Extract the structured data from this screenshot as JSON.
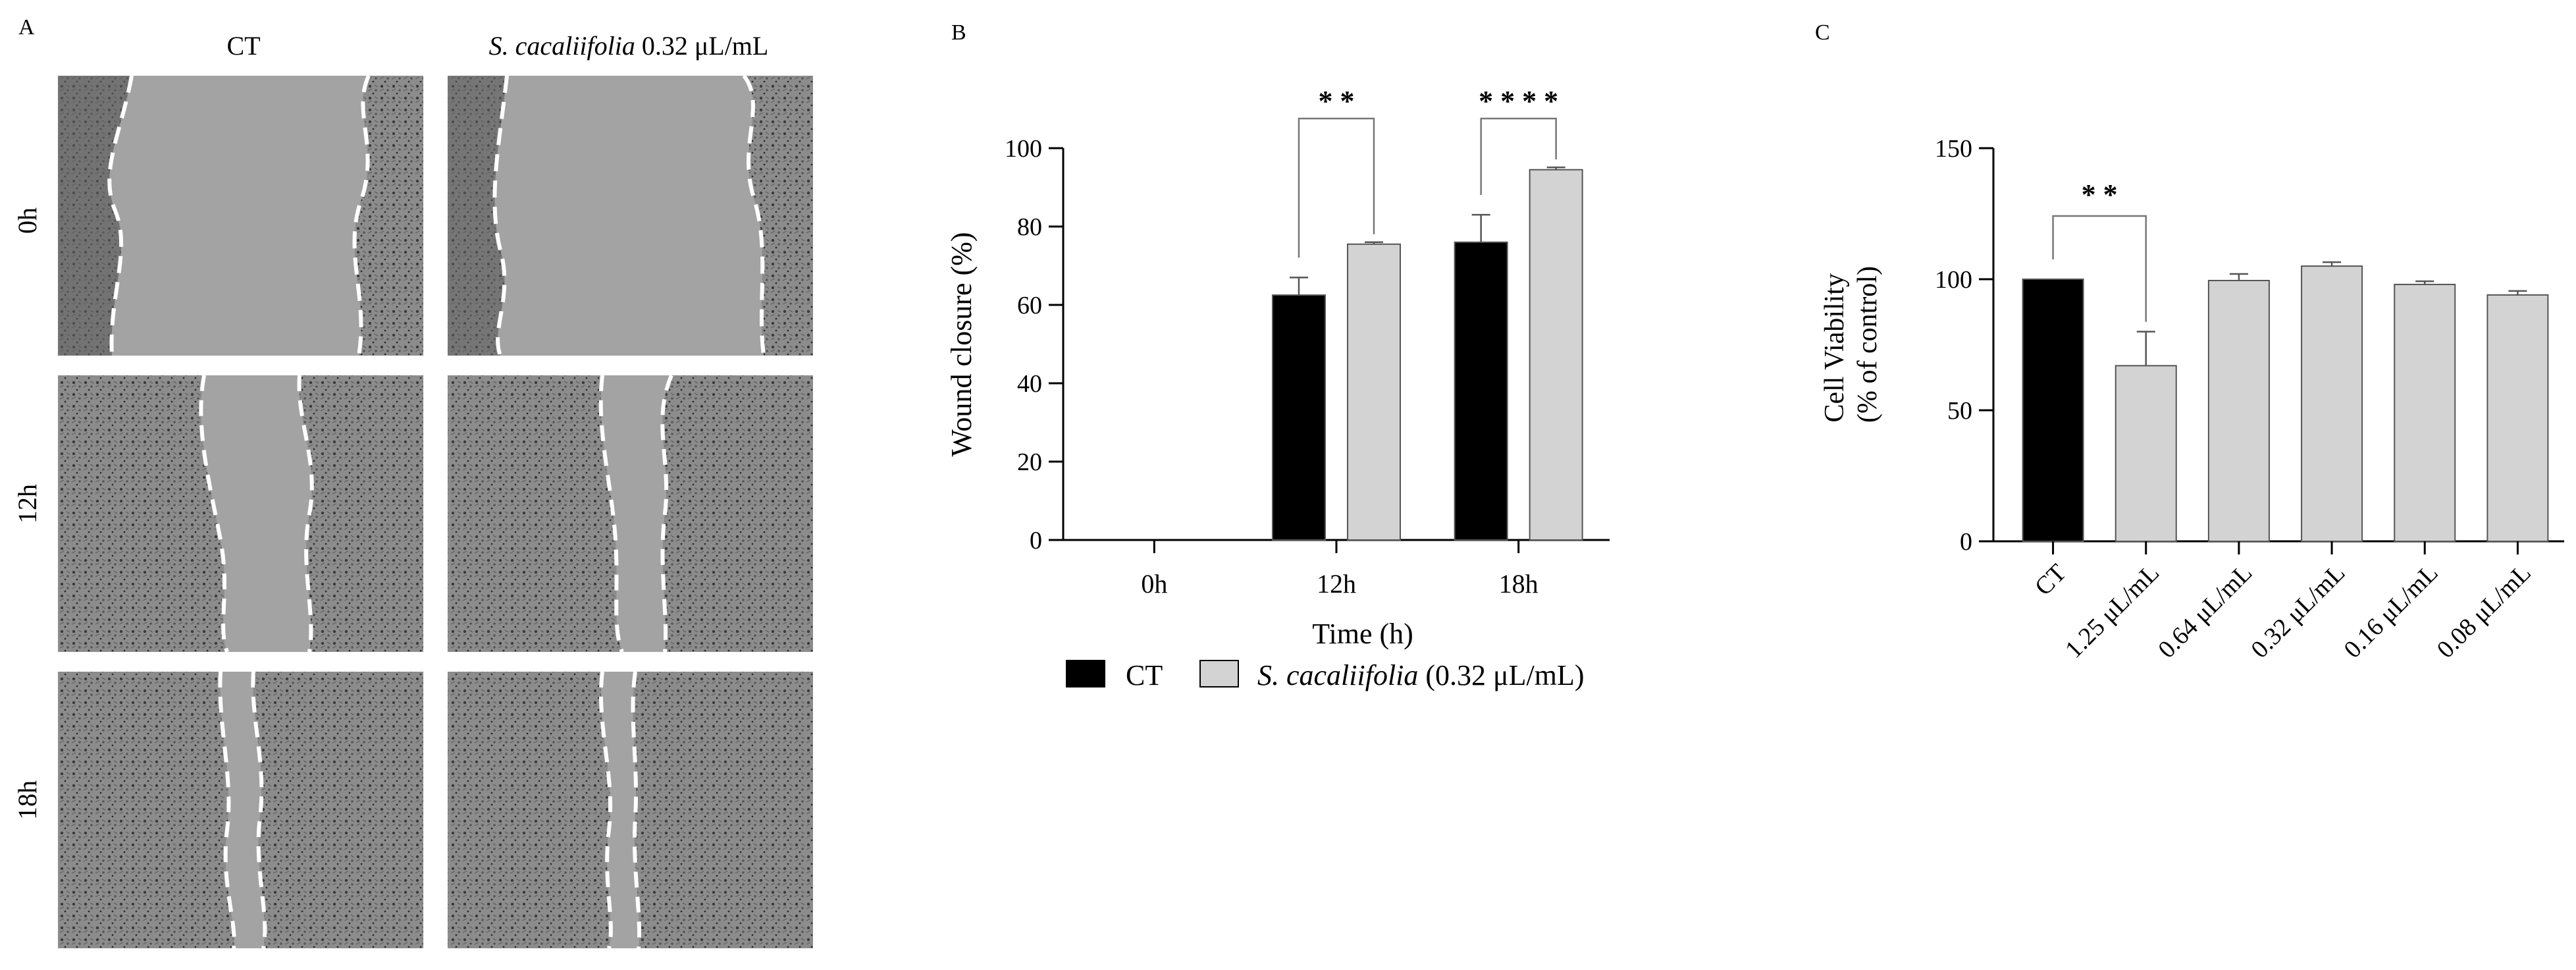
{
  "panel_a": {
    "letter": "A",
    "col_headers": [
      {
        "species": "",
        "dose": "CT"
      },
      {
        "species": "S. cacaliifolia",
        "dose": " 0.32 μL/mL"
      }
    ],
    "row_labels": [
      "0h",
      "12h",
      "18h"
    ]
  },
  "chart_data": [
    {
      "panel": "B",
      "type": "bar",
      "categories": [
        "0h",
        "12h",
        "18h"
      ],
      "series": [
        {
          "name": "CT",
          "color": "#000000",
          "values": [
            0,
            62.5,
            76
          ],
          "errors": [
            0,
            4.5,
            7
          ]
        },
        {
          "name": "S. cacaliifolia (0.32 μL/mL)",
          "color": "#d3d3d3",
          "values": [
            0,
            75.5,
            94.5
          ],
          "errors": [
            0,
            0.5,
            0.6
          ]
        }
      ],
      "xlabel": "Time (h)",
      "ylabel": "Wound closure  (%)",
      "ylim": [
        0,
        100
      ],
      "yticks": [
        0,
        20,
        40,
        60,
        80,
        100
      ],
      "significance": [
        {
          "category": "12h",
          "stars": "* *"
        },
        {
          "category": "18h",
          "stars": "* * * *"
        }
      ],
      "legend": {
        "position": "bottom",
        "items": [
          {
            "label": "CT",
            "italic": "",
            "rest": "",
            "color": "#000000"
          },
          {
            "label": "",
            "italic": "S. cacaliifolia",
            "rest": " (0.32 μL/mL)",
            "color": "#d3d3d3"
          }
        ]
      }
    },
    {
      "panel": "C",
      "type": "bar",
      "categories": [
        "CT",
        "1.25 μL/mL",
        "0.64 μL/mL",
        "0.32 μL/mL",
        "0.16 μL/mL",
        "0.08 μL/mL"
      ],
      "values": [
        100,
        67,
        99.5,
        105,
        98,
        94
      ],
      "errors": [
        0,
        13,
        2.5,
        1.5,
        1.2,
        1.5
      ],
      "colors": [
        "#000000",
        "#d3d3d3",
        "#d3d3d3",
        "#d3d3d3",
        "#d3d3d3",
        "#d3d3d3"
      ],
      "ylabel_lines": [
        "Cell Viability",
        "(% of control)"
      ],
      "ylim": [
        0,
        150
      ],
      "yticks": [
        0,
        50,
        100,
        150
      ],
      "significance": [
        {
          "from": "CT",
          "to": "1.25 μL/mL",
          "stars": "* *"
        }
      ]
    }
  ]
}
